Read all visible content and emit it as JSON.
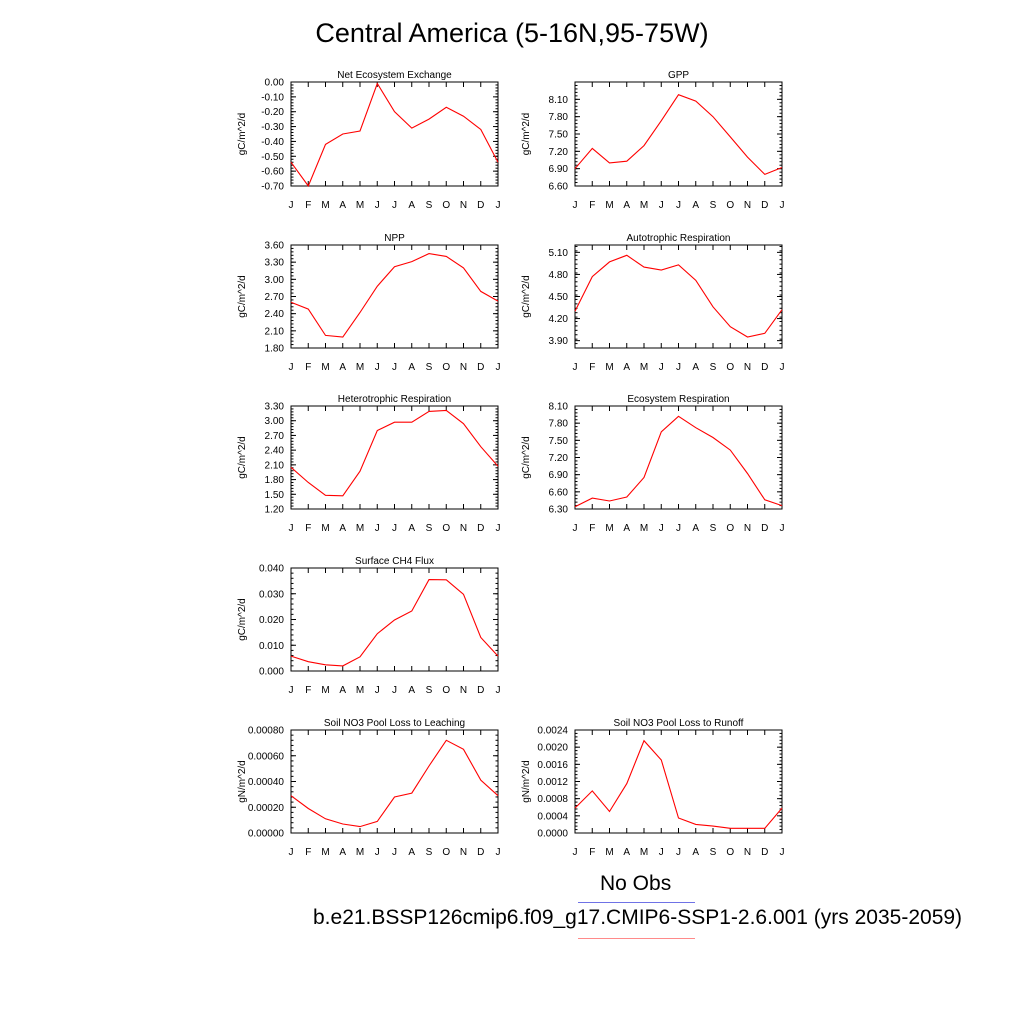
{
  "figure": {
    "title": "Central America (5-16N,95-75W)",
    "legend": {
      "obs_label": "No Obs",
      "model_label": "b.e21.BSSP126cmip6.f09_g17.CMIP6-SSP1-2.6.001 (yrs 2035-2059)",
      "colors": {
        "obs": "#6f72e6",
        "model": "#ff0000"
      }
    }
  },
  "chart_data": [
    {
      "type": "line",
      "title": "Net Ecosystem Exchange",
      "ylabel": "gC/m^2/d",
      "x": [
        "J",
        "F",
        "M",
        "A",
        "M",
        "J",
        "J",
        "A",
        "S",
        "O",
        "N",
        "D",
        "J"
      ],
      "ylim": [
        -0.7,
        0.0
      ],
      "yticks": [
        "0.00",
        "-0.10",
        "-0.20",
        "-0.30",
        "-0.40",
        "-0.50",
        "-0.60",
        "-0.70"
      ],
      "series": [
        {
          "color": "#ff0000",
          "values": [
            -0.54,
            -0.7,
            -0.42,
            -0.35,
            -0.33,
            -0.01,
            -0.2,
            -0.31,
            -0.25,
            -0.17,
            -0.23,
            -0.32,
            -0.54
          ]
        }
      ]
    },
    {
      "type": "line",
      "title": "GPP",
      "ylabel": "gC/m^2/d",
      "x": [
        "J",
        "F",
        "M",
        "A",
        "M",
        "J",
        "J",
        "A",
        "S",
        "O",
        "N",
        "D",
        "J"
      ],
      "ylim": [
        6.6,
        8.4
      ],
      "yticks": [
        "8.10",
        "7.80",
        "7.50",
        "7.20",
        "6.90",
        "6.60"
      ],
      "series": [
        {
          "color": "#ff0000",
          "values": [
            6.9,
            7.25,
            7.0,
            7.03,
            7.3,
            7.73,
            8.18,
            8.07,
            7.8,
            7.45,
            7.1,
            6.8,
            6.92
          ]
        }
      ]
    },
    {
      "type": "line",
      "title": "NPP",
      "ylabel": "gC/m^2/d",
      "x": [
        "J",
        "F",
        "M",
        "A",
        "M",
        "J",
        "J",
        "A",
        "S",
        "O",
        "N",
        "D",
        "J"
      ],
      "ylim": [
        1.8,
        3.6
      ],
      "yticks": [
        "3.60",
        "3.30",
        "3.00",
        "2.70",
        "2.40",
        "2.10",
        "1.80"
      ],
      "series": [
        {
          "color": "#ff0000",
          "values": [
            2.6,
            2.48,
            2.02,
            1.99,
            2.42,
            2.88,
            3.22,
            3.31,
            3.45,
            3.4,
            3.2,
            2.79,
            2.62
          ]
        }
      ]
    },
    {
      "type": "line",
      "title": "Autotrophic Respiration",
      "ylabel": "gC/m^2/d",
      "x": [
        "J",
        "F",
        "M",
        "A",
        "M",
        "J",
        "J",
        "A",
        "S",
        "O",
        "N",
        "D",
        "J"
      ],
      "ylim": [
        3.8,
        5.2
      ],
      "yticks": [
        "5.10",
        "4.80",
        "4.50",
        "4.20",
        "3.90"
      ],
      "series": [
        {
          "color": "#ff0000",
          "values": [
            4.3,
            4.77,
            4.97,
            5.06,
            4.9,
            4.86,
            4.93,
            4.72,
            4.36,
            4.09,
            3.95,
            4.0,
            4.32
          ]
        }
      ]
    },
    {
      "type": "line",
      "title": "Heterotrophic Respiration",
      "ylabel": "gC/m^2/d",
      "x": [
        "J",
        "F",
        "M",
        "A",
        "M",
        "J",
        "J",
        "A",
        "S",
        "O",
        "N",
        "D",
        "J"
      ],
      "ylim": [
        1.2,
        3.3
      ],
      "yticks": [
        "3.30",
        "3.00",
        "2.70",
        "2.40",
        "2.10",
        "1.80",
        "1.50",
        "1.20"
      ],
      "series": [
        {
          "color": "#ff0000",
          "values": [
            2.05,
            1.74,
            1.48,
            1.47,
            1.97,
            2.8,
            2.97,
            2.97,
            3.19,
            3.21,
            2.94,
            2.47,
            2.07
          ]
        }
      ]
    },
    {
      "type": "line",
      "title": "Ecosystem Respiration",
      "ylabel": "gC/m^2/d",
      "x": [
        "J",
        "F",
        "M",
        "A",
        "M",
        "J",
        "J",
        "A",
        "S",
        "O",
        "N",
        "D",
        "J"
      ],
      "ylim": [
        6.3,
        8.1
      ],
      "yticks": [
        "8.10",
        "7.80",
        "7.50",
        "7.20",
        "6.90",
        "6.60",
        "6.30"
      ],
      "series": [
        {
          "color": "#ff0000",
          "values": [
            6.34,
            6.49,
            6.44,
            6.51,
            6.85,
            7.65,
            7.92,
            7.72,
            7.55,
            7.33,
            6.92,
            6.46,
            6.36
          ]
        }
      ]
    },
    {
      "type": "line",
      "title": "Surface CH4 Flux",
      "ylabel": "gC/m^2/d",
      "x": [
        "J",
        "F",
        "M",
        "A",
        "M",
        "J",
        "J",
        "A",
        "S",
        "O",
        "N",
        "D",
        "J"
      ],
      "ylim": [
        0.0,
        0.04
      ],
      "yticks": [
        "0.040",
        "0.030",
        "0.020",
        "0.010",
        "0.000"
      ],
      "series": [
        {
          "color": "#ff0000",
          "values": [
            0.0058,
            0.0036,
            0.0024,
            0.002,
            0.0055,
            0.0145,
            0.0198,
            0.0233,
            0.0355,
            0.0354,
            0.0298,
            0.013,
            0.0058
          ]
        }
      ]
    },
    {
      "type": "line",
      "title": "Soil NO3 Pool Loss to Leaching",
      "ylabel": "gN/m^2/d",
      "x": [
        "J",
        "F",
        "M",
        "A",
        "M",
        "J",
        "J",
        "A",
        "S",
        "O",
        "N",
        "D",
        "J"
      ],
      "ylim": [
        0.0,
        0.0008
      ],
      "yticks": [
        "0.00080",
        "0.00060",
        "0.00040",
        "0.00020",
        "0.00000"
      ],
      "series": [
        {
          "color": "#ff0000",
          "values": [
            0.00029,
            0.00019,
            0.00011,
            7e-05,
            5e-05,
            9e-05,
            0.00028,
            0.00031,
            0.00052,
            0.00072,
            0.00065,
            0.00041,
            0.00029
          ]
        }
      ]
    },
    {
      "type": "line",
      "title": "Soil NO3 Pool Loss to Runoff",
      "ylabel": "gN/m^2/d",
      "x": [
        "J",
        "F",
        "M",
        "A",
        "M",
        "J",
        "J",
        "A",
        "S",
        "O",
        "N",
        "D",
        "J"
      ],
      "ylim": [
        0.0,
        0.0024
      ],
      "yticks": [
        "0.0024",
        "0.0020",
        "0.0016",
        "0.0012",
        "0.0008",
        "0.0004",
        "0.0000"
      ],
      "series": [
        {
          "color": "#ff0000",
          "values": [
            0.00058,
            0.00098,
            0.0005,
            0.00115,
            0.00215,
            0.0017,
            0.00035,
            0.0002,
            0.00016,
            0.00011,
            0.00011,
            0.00011,
            0.00058
          ]
        }
      ]
    }
  ]
}
